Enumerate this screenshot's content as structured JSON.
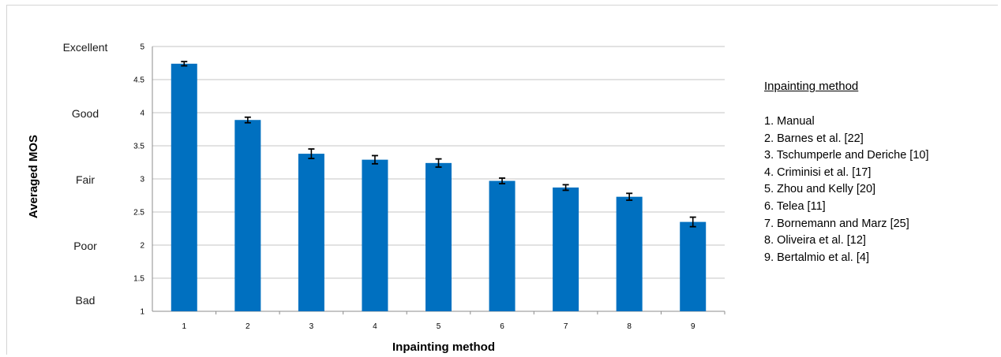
{
  "chart_data": {
    "type": "bar",
    "categories": [
      "1",
      "2",
      "3",
      "4",
      "5",
      "6",
      "7",
      "8",
      "9"
    ],
    "values": [
      4.74,
      3.89,
      3.38,
      3.29,
      3.24,
      2.97,
      2.87,
      2.73,
      2.35
    ],
    "errors": [
      0.02,
      0.03,
      0.06,
      0.05,
      0.05,
      0.03,
      0.03,
      0.04,
      0.06
    ],
    "xlabel": "Inpainting method",
    "ylabel": "Averaged MOS",
    "ylim": [
      1,
      5
    ],
    "yticks": [
      "1",
      "1.5",
      "2",
      "2.5",
      "3",
      "3.5",
      "4",
      "4.5",
      "5"
    ],
    "quality_labels": [
      "Excellent",
      "Good",
      "Fair",
      "Poor",
      "Bad"
    ],
    "bar_color": "#0070c0",
    "gridlines": true,
    "legend": {
      "title": "Inpainting method",
      "items": [
        "1. Manual",
        "2. Barnes et al. [22]",
        "3. Tschumperle and Deriche [10]",
        "4. Criminisi et al. [17]",
        "5. Zhou and Kelly [20]",
        "6. Telea [11]",
        "7. Bornemann and Marz [25]",
        "8. Oliveira et al. [12]",
        "9.  Bertalmio et al. [4]"
      ],
      "position": "right"
    }
  }
}
